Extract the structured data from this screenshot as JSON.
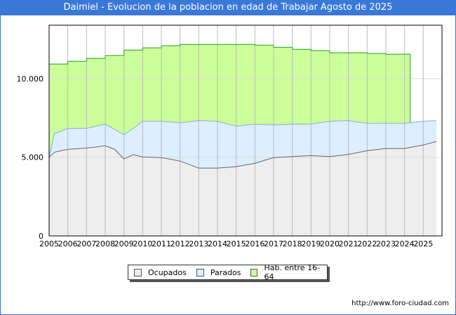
{
  "title": "Daimiel - Evolucion de la poblacion en edad de Trabajar Agosto de 2025",
  "url": "http://www.foro-ciudad.com",
  "chart_data": {
    "type": "area",
    "title": "Daimiel - Evolucion de la poblacion en edad de Trabajar Agosto de 2025",
    "xlim": [
      2005,
      2026
    ],
    "ylim": [
      0,
      13400
    ],
    "x_ticks": [
      "2005",
      "2006",
      "2007",
      "2008",
      "2009",
      "2010",
      "2011",
      "2012",
      "2013",
      "2014",
      "2015",
      "2016",
      "2017",
      "2018",
      "2019",
      "2020",
      "2021",
      "2022",
      "2023",
      "2024",
      "2025"
    ],
    "y_ticks": [
      {
        "v": 0,
        "label": "0"
      },
      {
        "v": 5000,
        "label": "5.000"
      },
      {
        "v": 10000,
        "label": "10.000"
      }
    ],
    "legend_position": "bottom",
    "series": [
      {
        "name": "Hab. entre 16-64",
        "color": "#ccff99",
        "line": "#22aa22",
        "x": [
          2005,
          2006,
          2006,
          2007,
          2007,
          2008,
          2008,
          2009,
          2009,
          2010,
          2010,
          2011,
          2011,
          2012,
          2012,
          2016,
          2016,
          2017,
          2017,
          2018,
          2018,
          2019,
          2019,
          2020,
          2020,
          2022,
          2022,
          2023,
          2023,
          2024.3
        ],
        "y": [
          10930,
          10930,
          11110,
          11110,
          11290,
          11290,
          11470,
          11470,
          11820,
          11820,
          11960,
          11960,
          12090,
          12090,
          12180,
          12180,
          12130,
          12130,
          12000,
          12000,
          11870,
          11870,
          11780,
          11780,
          11640,
          11640,
          11600,
          11600,
          11560,
          11560
        ]
      },
      {
        "name": "Parados",
        "color": "#ddeeff",
        "line": "#88aadd",
        "x": [
          2005,
          2005.3,
          2005.5,
          2006,
          2007,
          2008,
          2009,
          2009.5,
          2010,
          2011,
          2012,
          2013,
          2014,
          2015,
          2016,
          2017,
          2018,
          2019,
          2020,
          2021,
          2022,
          2023,
          2024,
          2025,
          2025.7
        ],
        "y": [
          5000,
          6530,
          6600,
          6840,
          6840,
          7110,
          6440,
          6840,
          7290,
          7290,
          7200,
          7330,
          7290,
          6980,
          7110,
          7060,
          7110,
          7110,
          7290,
          7330,
          7160,
          7160,
          7160,
          7290,
          7330
        ]
      },
      {
        "name": "Ocupados",
        "color": "#eeeeee",
        "line": "#666666",
        "x": [
          2005,
          2005.3,
          2006,
          2007,
          2008,
          2008.5,
          2009,
          2009.5,
          2010,
          2011,
          2012,
          2013,
          2014,
          2015,
          2016,
          2017,
          2018,
          2019,
          2020,
          2021,
          2022,
          2023,
          2024,
          2025,
          2025.7
        ],
        "y": [
          5000,
          5330,
          5510,
          5580,
          5730,
          5510,
          4890,
          5170,
          5020,
          4980,
          4760,
          4310,
          4310,
          4400,
          4620,
          4980,
          5040,
          5110,
          5040,
          5180,
          5420,
          5560,
          5560,
          5780,
          6000
        ]
      }
    ]
  }
}
